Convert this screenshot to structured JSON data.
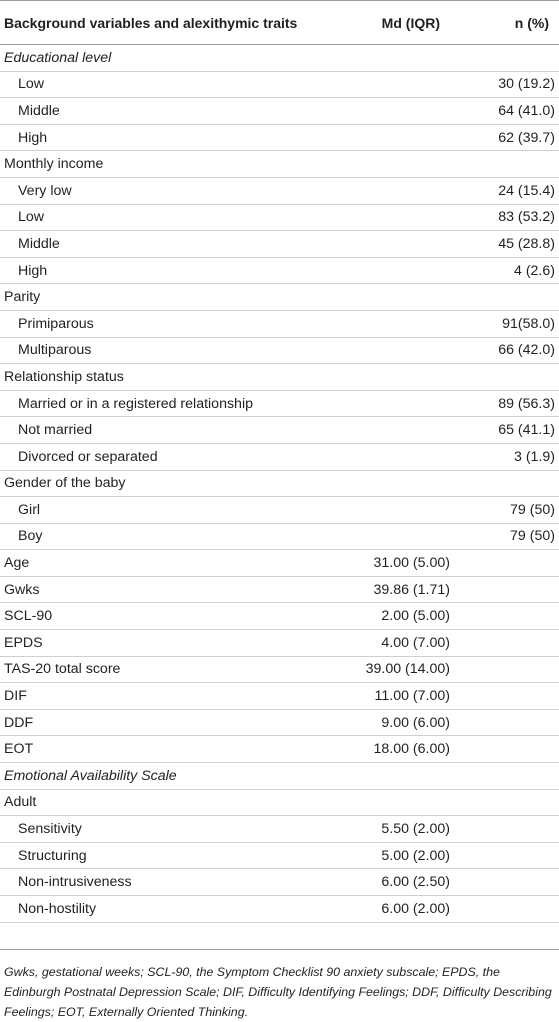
{
  "table": {
    "headers": [
      "Background variables and alexithymic traits",
      "Md (IQR)",
      "n (%)"
    ],
    "rows": [
      {
        "label": "Educational level",
        "md": "",
        "n": "",
        "style": "italic"
      },
      {
        "label": "Low",
        "md": "",
        "n": "30 (19.2)",
        "style": "indent"
      },
      {
        "label": "Middle",
        "md": "",
        "n": "64 (41.0)",
        "style": "indent"
      },
      {
        "label": "High",
        "md": "",
        "n": "62 (39.7)",
        "style": "indent"
      },
      {
        "label": "Monthly income",
        "md": "",
        "n": "",
        "style": "plain"
      },
      {
        "label": "Very low",
        "md": "",
        "n": "24 (15.4)",
        "style": "indent"
      },
      {
        "label": "Low",
        "md": "",
        "n": "83 (53.2)",
        "style": "indent"
      },
      {
        "label": "Middle",
        "md": "",
        "n": "45 (28.8)",
        "style": "indent"
      },
      {
        "label": "High",
        "md": "",
        "n": "4 (2.6)",
        "style": "indent"
      },
      {
        "label": "Parity",
        "md": "",
        "n": "",
        "style": "plain"
      },
      {
        "label": "Primiparous",
        "md": "",
        "n": "91(58.0)",
        "style": "indent"
      },
      {
        "label": "Multiparous",
        "md": "",
        "n": "66 (42.0)",
        "style": "indent"
      },
      {
        "label": "Relationship status",
        "md": "",
        "n": "",
        "style": "plain"
      },
      {
        "label": "Married or in a registered relationship",
        "md": "",
        "n": "89 (56.3)",
        "style": "indent"
      },
      {
        "label": "Not married",
        "md": "",
        "n": "65 (41.1)",
        "style": "indent"
      },
      {
        "label": "Divorced or separated",
        "md": "",
        "n": "3 (1.9)",
        "style": "indent"
      },
      {
        "label": "Gender of the baby",
        "md": "",
        "n": "",
        "style": "plain"
      },
      {
        "label": "Girl",
        "md": "",
        "n": "79 (50)",
        "style": "indent"
      },
      {
        "label": "Boy",
        "md": "",
        "n": "79 (50)",
        "style": "indent"
      },
      {
        "label": "Age",
        "md": "31.00 (5.00)",
        "n": "",
        "style": "plain"
      },
      {
        "label": "Gwks",
        "md": "39.86 (1.71)",
        "n": "",
        "style": "plain"
      },
      {
        "label": "SCL-90",
        "md": "2.00 (5.00)",
        "n": "",
        "style": "plain"
      },
      {
        "label": "EPDS",
        "md": "4.00 (7.00)",
        "n": "",
        "style": "plain"
      },
      {
        "label": "TAS-20 total score",
        "md": "39.00 (14.00)",
        "n": "",
        "style": "plain"
      },
      {
        "label": "DIF",
        "md": "11.00 (7.00)",
        "n": "",
        "style": "plain"
      },
      {
        "label": "DDF",
        "md": "9.00 (6.00)",
        "n": "",
        "style": "plain"
      },
      {
        "label": "EOT",
        "md": "18.00 (6.00)",
        "n": "",
        "style": "plain"
      },
      {
        "label": "Emotional Availability Scale",
        "md": "",
        "n": "",
        "style": "italic"
      },
      {
        "label": "Adult",
        "md": "",
        "n": "",
        "style": "plain"
      },
      {
        "label": "Sensitivity",
        "md": "5.50 (2.00)",
        "n": "",
        "style": "indent"
      },
      {
        "label": "Structuring",
        "md": "5.00 (2.00)",
        "n": "",
        "style": "indent"
      },
      {
        "label": "Non-intrusiveness",
        "md": "6.00 (2.50)",
        "n": "",
        "style": "indent"
      },
      {
        "label": "Non-hostility",
        "md": "6.00 (2.00)",
        "n": "",
        "style": "indent"
      }
    ],
    "footnote": "Gwks, gestational weeks; SCL-90, the Symptom Checklist 90 anxiety subscale; EPDS, the Edinburgh Postnatal Depression Scale; DIF, Difficulty Identifying Feelings; DDF, Difficulty Describing Feelings; EOT, Externally Oriented Thinking."
  }
}
